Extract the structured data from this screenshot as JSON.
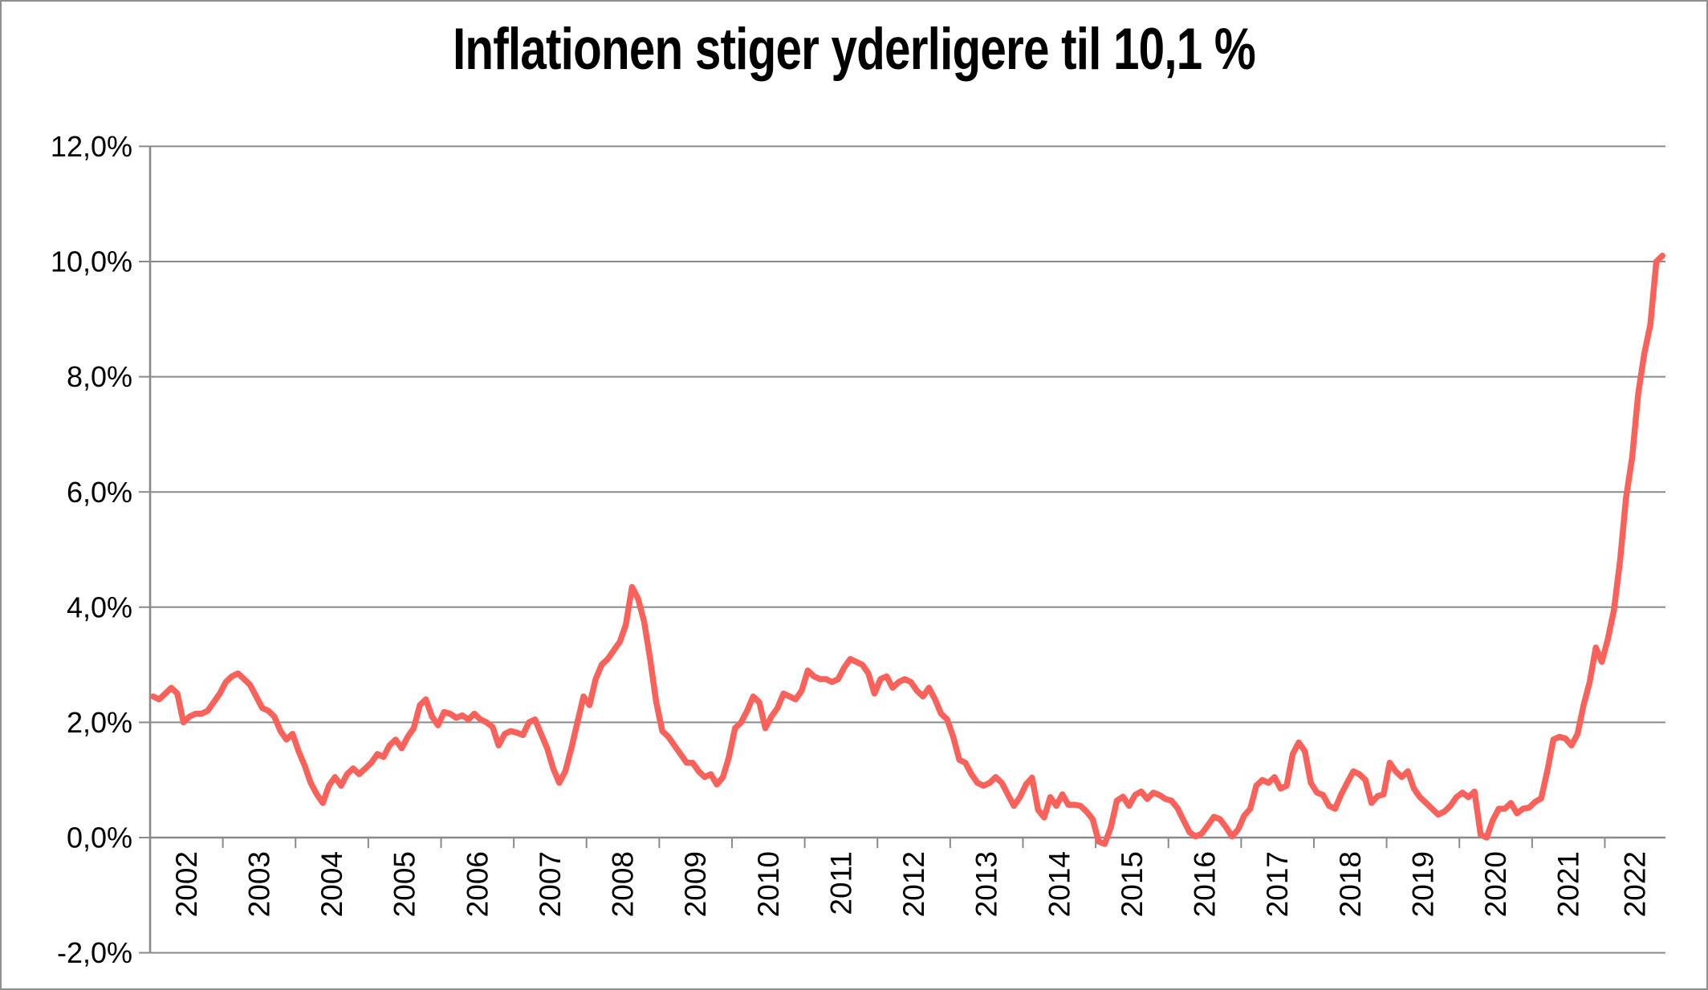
{
  "chart": {
    "title": "Inflationen stiger yderligere til 10,1 %"
  },
  "chart_data": {
    "type": "line",
    "title": "Inflationen stiger yderligere til 10,1 %",
    "xlabel": "",
    "ylabel": "",
    "frequency": "monthly",
    "x_start": "2002-01",
    "x_end": "2022-10",
    "x_year_labels": [
      "2002",
      "2003",
      "2004",
      "2005",
      "2006",
      "2007",
      "2008",
      "2009",
      "2010",
      "2011",
      "2012",
      "2013",
      "2014",
      "2015",
      "2016",
      "2017",
      "2018",
      "2019",
      "2020",
      "2021",
      "2022"
    ],
    "y_tick_labels": [
      "12,0%",
      "10,0%",
      "8,0%",
      "6,0%",
      "4,0%",
      "2,0%",
      "0,0%",
      "-2,0%"
    ],
    "y_tick_values": [
      12,
      10,
      8,
      6,
      4,
      2,
      0,
      -2
    ],
    "ylim": [
      -2,
      12
    ],
    "grid": true,
    "legend": "none",
    "line_color": "#F9625A",
    "axis_color": "#8a8a8a",
    "final_value_label": "10,1 %",
    "values": [
      2.45,
      2.4,
      2.5,
      2.6,
      2.5,
      2.0,
      2.1,
      2.15,
      2.15,
      2.2,
      2.35,
      2.5,
      2.7,
      2.8,
      2.85,
      2.75,
      2.65,
      2.45,
      2.25,
      2.2,
      2.1,
      1.85,
      1.7,
      1.8,
      1.5,
      1.25,
      0.95,
      0.75,
      0.6,
      0.9,
      1.05,
      0.9,
      1.1,
      1.2,
      1.1,
      1.2,
      1.3,
      1.45,
      1.4,
      1.6,
      1.7,
      1.55,
      1.75,
      1.9,
      2.3,
      2.4,
      2.1,
      1.95,
      2.18,
      2.15,
      2.08,
      2.12,
      2.05,
      2.15,
      2.05,
      2.0,
      1.92,
      1.6,
      1.8,
      1.85,
      1.82,
      1.78,
      2.0,
      2.05,
      1.8,
      1.55,
      1.2,
      0.95,
      1.15,
      1.55,
      2.0,
      2.45,
      2.3,
      2.75,
      3.0,
      3.1,
      3.25,
      3.4,
      3.7,
      4.35,
      4.15,
      3.75,
      3.1,
      2.35,
      1.85,
      1.75,
      1.6,
      1.45,
      1.3,
      1.3,
      1.15,
      1.05,
      1.1,
      0.92,
      1.05,
      1.4,
      1.9,
      2.0,
      2.2,
      2.45,
      2.35,
      1.9,
      2.1,
      2.25,
      2.5,
      2.45,
      2.4,
      2.55,
      2.9,
      2.8,
      2.75,
      2.75,
      2.7,
      2.75,
      2.95,
      3.1,
      3.05,
      3.0,
      2.85,
      2.5,
      2.75,
      2.8,
      2.6,
      2.7,
      2.75,
      2.7,
      2.55,
      2.45,
      2.6,
      2.4,
      2.15,
      2.05,
      1.75,
      1.35,
      1.3,
      1.1,
      0.95,
      0.9,
      0.95,
      1.05,
      0.95,
      0.75,
      0.55,
      0.7,
      0.92,
      1.04,
      0.48,
      0.35,
      0.7,
      0.55,
      0.75,
      0.57,
      0.57,
      0.55,
      0.45,
      0.32,
      -0.07,
      -0.11,
      0.18,
      0.64,
      0.71,
      0.55,
      0.74,
      0.8,
      0.67,
      0.78,
      0.74,
      0.67,
      0.64,
      0.51,
      0.3,
      0.09,
      0.02,
      0.07,
      0.21,
      0.36,
      0.32,
      0.18,
      0.02,
      0.14,
      0.38,
      0.5,
      0.9,
      1.0,
      0.95,
      1.05,
      0.85,
      0.9,
      1.45,
      1.65,
      1.5,
      0.95,
      0.78,
      0.74,
      0.55,
      0.5,
      0.75,
      0.95,
      1.15,
      1.1,
      1.0,
      0.6,
      0.72,
      0.75,
      1.3,
      1.15,
      1.05,
      1.15,
      0.85,
      0.7,
      0.6,
      0.5,
      0.4,
      0.45,
      0.55,
      0.7,
      0.78,
      0.7,
      0.8,
      0.05,
      0.0,
      0.3,
      0.5,
      0.5,
      0.6,
      0.42,
      0.5,
      0.52,
      0.62,
      0.68,
      1.15,
      1.7,
      1.75,
      1.72,
      1.6,
      1.8,
      2.3,
      2.7,
      3.3,
      3.05,
      3.45,
      3.95,
      4.8,
      5.9,
      6.6,
      7.7,
      8.4,
      8.9,
      10.0,
      10.1
    ]
  }
}
